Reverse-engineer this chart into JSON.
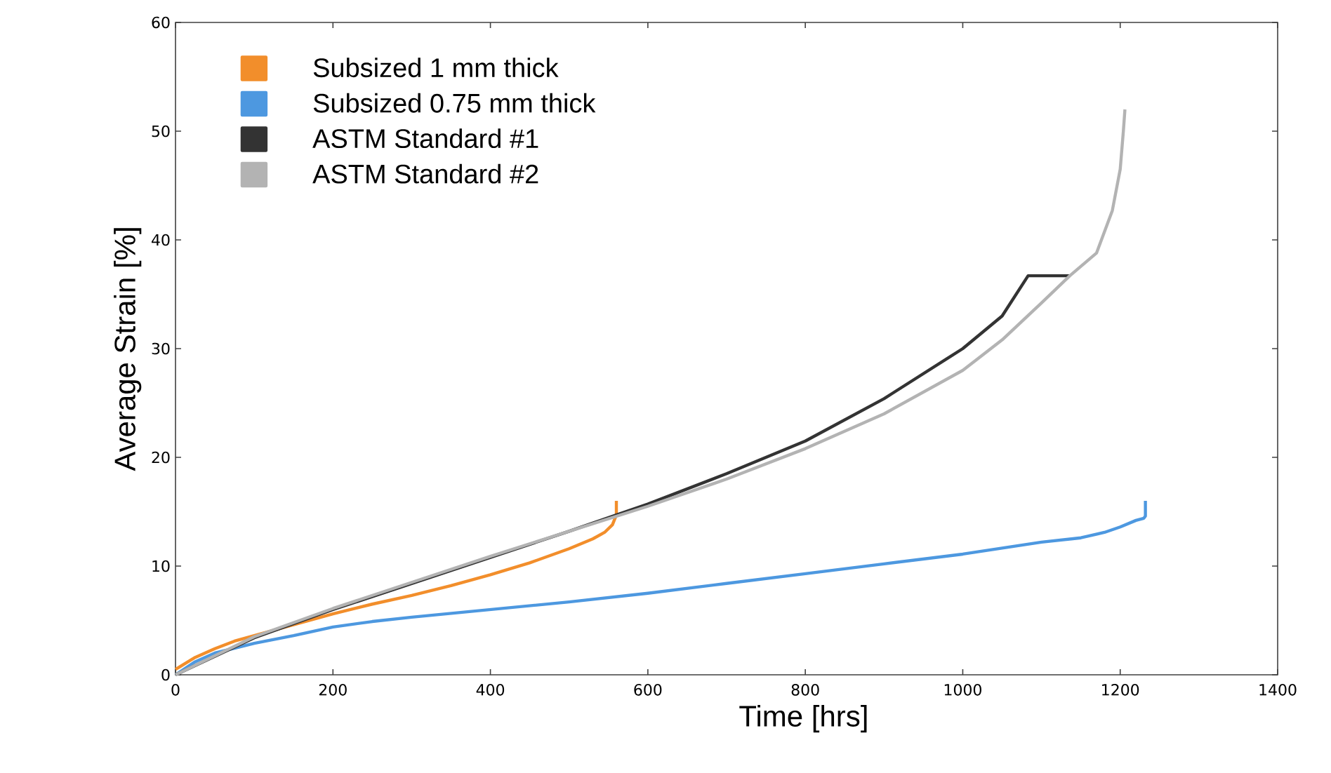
{
  "chart_data": {
    "type": "line",
    "xlabel": "Time [hrs]",
    "ylabel": "Average Strain [%]",
    "xlim": [
      0,
      1400
    ],
    "ylim": [
      0,
      60
    ],
    "xticks": [
      0,
      200,
      400,
      600,
      800,
      1000,
      1200,
      1400
    ],
    "yticks": [
      0,
      10,
      20,
      30,
      40,
      50,
      60
    ],
    "grid": false,
    "legend": "top left",
    "line_style": "solid",
    "marker": "none",
    "series": [
      {
        "name": "Subsized 1 mm thick",
        "color": "#f28e2b",
        "x": [
          0,
          25,
          50,
          75,
          100,
          150,
          200,
          250,
          300,
          350,
          400,
          450,
          500,
          530,
          545,
          555,
          560,
          560
        ],
        "values": [
          0.5,
          1.6,
          2.4,
          3.1,
          3.6,
          4.6,
          5.6,
          6.5,
          7.3,
          8.2,
          9.2,
          10.3,
          11.6,
          12.5,
          13.1,
          13.8,
          14.7,
          16.0
        ]
      },
      {
        "name": "Subsized 0.75 mm thick",
        "color": "#4d98e0",
        "x": [
          0,
          25,
          50,
          100,
          150,
          200,
          250,
          300,
          400,
          500,
          600,
          700,
          800,
          900,
          1000,
          1100,
          1150,
          1180,
          1200,
          1220,
          1230,
          1232,
          1232
        ],
        "values": [
          0,
          1.2,
          2.0,
          2.9,
          3.6,
          4.4,
          4.9,
          5.3,
          6.0,
          6.7,
          7.5,
          8.4,
          9.3,
          10.2,
          11.1,
          12.2,
          12.6,
          13.1,
          13.6,
          14.2,
          14.4,
          14.6,
          16.0
        ]
      },
      {
        "name": "ASTM Standard #1",
        "color": "#333333",
        "x": [
          0,
          100,
          200,
          300,
          400,
          500,
          600,
          700,
          800,
          900,
          1000,
          1050,
          1083,
          1136
        ],
        "values": [
          0,
          3.4,
          6.0,
          8.4,
          10.8,
          13.2,
          15.7,
          18.5,
          21.5,
          25.4,
          30.0,
          33.0,
          36.7,
          36.7
        ]
      },
      {
        "name": "ASTM Standard #2",
        "color": "#b3b3b3",
        "x": [
          0,
          100,
          200,
          300,
          400,
          500,
          600,
          700,
          800,
          900,
          1000,
          1050,
          1100,
          1136,
          1170,
          1190,
          1200,
          1204,
          1206
        ],
        "values": [
          0,
          3.5,
          6.1,
          8.5,
          10.9,
          13.2,
          15.5,
          18.0,
          20.8,
          24.0,
          28.0,
          30.8,
          34.2,
          36.7,
          38.8,
          42.7,
          46.5,
          50.0,
          52.0
        ]
      }
    ]
  }
}
